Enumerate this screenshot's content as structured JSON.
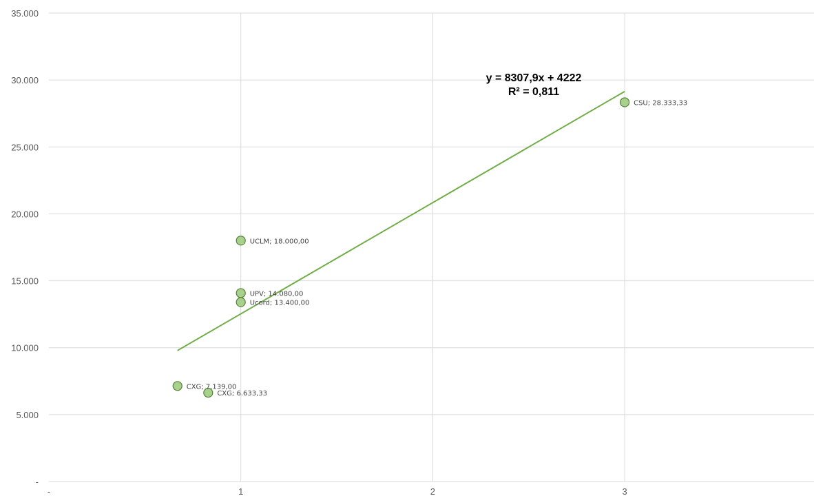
{
  "chart_data": {
    "type": "scatter",
    "title": "",
    "xlabel": "",
    "ylabel": "",
    "xlim": [
      0,
      3
    ],
    "ylim": [
      0,
      35000
    ],
    "grid": true,
    "x_ticks": [
      "-",
      "1",
      "2",
      "3"
    ],
    "y_ticks": [
      "-",
      "5.000",
      "10.000",
      "15.000",
      "20.000",
      "25.000",
      "30.000",
      "35.000"
    ],
    "points": [
      {
        "name": "UCLM",
        "x": 1.0,
        "y": 18000.0,
        "label": "UCLM; 18.000,00"
      },
      {
        "name": "UPV",
        "x": 1.0,
        "y": 14080.0,
        "label": "UPV; 14.080,00"
      },
      {
        "name": "Ucord",
        "x": 1.0,
        "y": 13400.0,
        "label": "Ucord; 13.400,00"
      },
      {
        "name": "CXG",
        "x": 0.67,
        "y": 7139.0,
        "label": "CXG; 7.139,00"
      },
      {
        "name": "CXG",
        "x": 0.83,
        "y": 6633.33,
        "label": "CXG; 6.633,33"
      },
      {
        "name": "CSU",
        "x": 3.0,
        "y": 28333.33,
        "label": "CSU; 28.333,33"
      }
    ],
    "trendline": {
      "slope": 8307.9,
      "intercept": 4222,
      "x_range": [
        0.67,
        3.0
      ],
      "equation": "y = 8307,9x + 4222",
      "r_squared": "R² = 0,811",
      "color": "#70ad47"
    },
    "marker_fill": "#a9d18e",
    "marker_stroke": "#548235",
    "grid_color": "#d9d9d9"
  }
}
